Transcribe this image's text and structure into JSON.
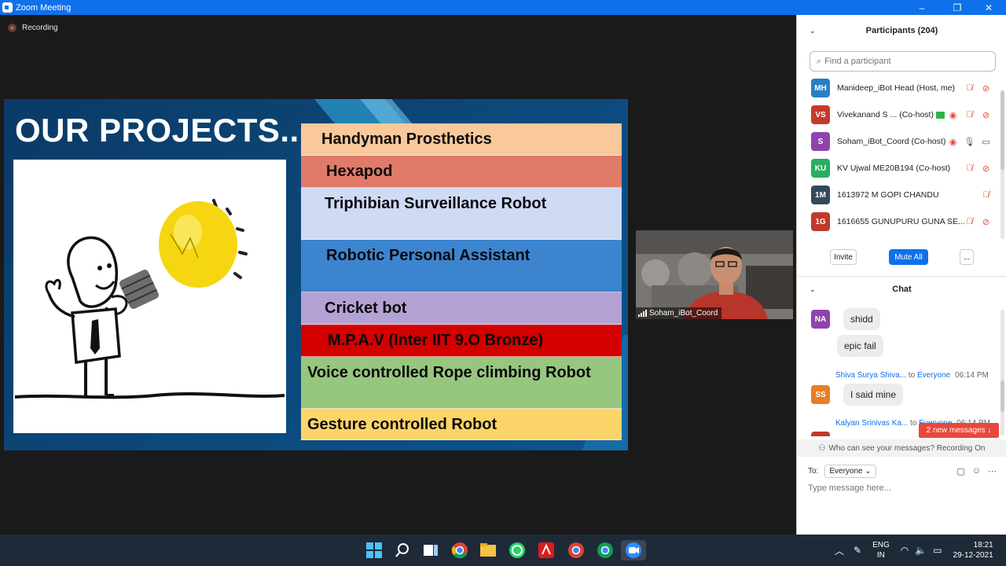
{
  "window": {
    "title": "Zoom Meeting",
    "minimize": "–",
    "restore": "❐",
    "close": "✕"
  },
  "recording": {
    "label": "Recording"
  },
  "slide": {
    "title": "OUR PROJECTS...",
    "projects": [
      {
        "label": "Handyman Prosthetics",
        "color": "#f9c89b"
      },
      {
        "label": "Hexapod",
        "color": "#e07b6a"
      },
      {
        "label": "Triphibian Surveillance Robot",
        "color": "#cfdaf5"
      },
      {
        "label": "Robotic Personal Assistant",
        "color": "#3d84cf"
      },
      {
        "label": "Cricket bot",
        "color": "#b3a2d3"
      },
      {
        "label": "M.P.A.V (Inter IIT 9.O Bronze)",
        "color": "#d40000"
      },
      {
        "label": "Voice controlled Rope climbing Robot",
        "color": "#97c67e"
      },
      {
        "label": "Gesture controlled Robot",
        "color": "#fcd56a"
      }
    ]
  },
  "video": {
    "name": "Soham_iBot_Coord"
  },
  "participants": {
    "title": "Participants (204)",
    "search_placeholder": "Find a participant",
    "list": [
      {
        "initials": "MH",
        "color": "#2a7fc4",
        "name": "Manideep_iBot Head (Host, me)"
      },
      {
        "initials": "VS",
        "color": "#c8392b",
        "name": "Vivekanand S ... (Co-host)"
      },
      {
        "initials": "S",
        "color": "#8e44ad",
        "name": "Soham_iBot_Coord (Co-host)"
      },
      {
        "initials": "KU",
        "color": "#27ae60",
        "name": "KV Ujwal ME20B194 (Co-host)"
      },
      {
        "initials": "1M",
        "color": "#34495e",
        "name": "1613972 M GOPI CHANDU"
      },
      {
        "initials": "1G",
        "color": "#c0392b",
        "name": "1616655 GUNUPURU GUNA SE..."
      }
    ],
    "invite": "Invite",
    "mute_all": "Mute All",
    "more": "..."
  },
  "chat": {
    "title": "Chat",
    "messages": [
      {
        "initials": "NA",
        "color": "#8e44ad",
        "text": "shidd"
      },
      {
        "text": "epic fail"
      },
      {
        "sender": "Shiva Surya Shiva...",
        "to": "to",
        "recipient": "Everyone",
        "time": "06:14 PM",
        "initials": "SS",
        "color": "#e67e22",
        "text": "I said mine"
      },
      {
        "sender": "Kalyan Srinivas Ka...",
        "to": "to",
        "recipient": "Everyone",
        "time": "06:14 PM",
        "initials": "KS",
        "color": "#c0392b"
      }
    ],
    "new_messages": "2 new messages ↓",
    "privacy": "Who can see your messages? Recording On",
    "to_label": "To:",
    "to_value": "Everyone",
    "input_placeholder": "Type message here..."
  },
  "taskbar": {
    "lang_top": "ENG",
    "lang_bottom": "IN",
    "time": "18:21",
    "date": "29-12-2021"
  }
}
